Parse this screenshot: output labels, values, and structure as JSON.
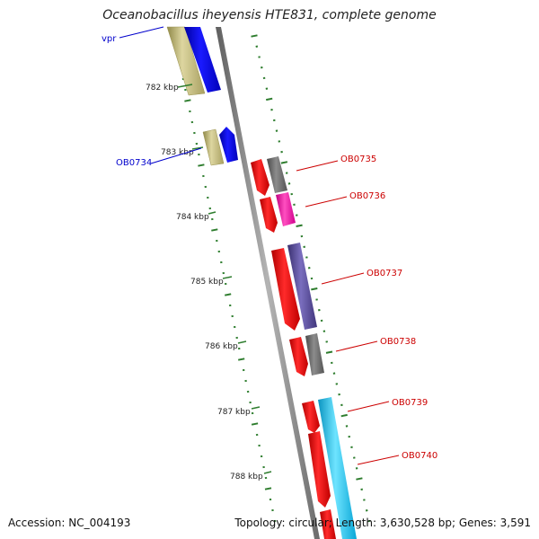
{
  "title": "Oceanobacillus iheyensis HTE831, complete genome",
  "accession_text": "Accession: NC_004193",
  "summary_text": "Topology: circular; Length: 3,630,528 bp; Genes: 3,591",
  "colors": {
    "backbone": "#8a8a8a",
    "tick": "#2e7d2e",
    "cds": "#ff0000",
    "gene_khaki": "#c8c07a",
    "gene_blue": "#0000ee",
    "gene_gray": "#6e6e6e",
    "gene_magenta": "#ff1aa8",
    "gene_purple": "#5a4e9e",
    "gene_cyan": "#19c8f0",
    "label_blue": "#0000cc",
    "label_red": "#cc0000"
  },
  "scale_labels": [
    "782 kbp",
    "783 kbp",
    "784 kbp",
    "785 kbp",
    "786 kbp",
    "787 kbp",
    "788 kbp"
  ],
  "feature_labels": [
    "vpr",
    "OB0734",
    "OB0735",
    "OB0736",
    "OB0737",
    "OB0738",
    "OB0739",
    "OB0740"
  ]
}
